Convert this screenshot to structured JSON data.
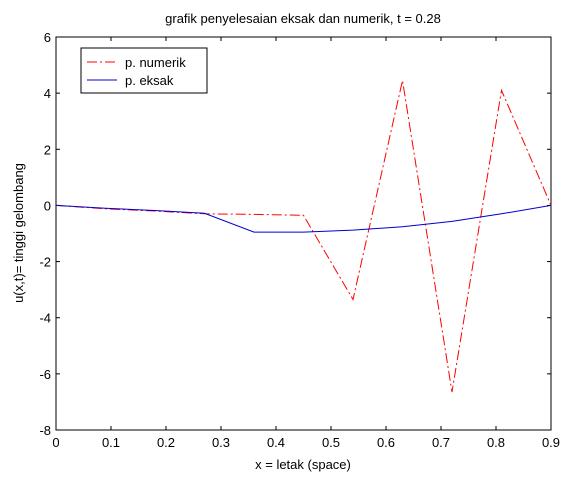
{
  "chart_data": {
    "type": "line",
    "title": "grafik penyelesaian eksak dan numerik, t = 0.28",
    "xlabel": "x = letak (space)",
    "ylabel": "u(x,t)= tinggi gelombang",
    "xlim": [
      0,
      0.9
    ],
    "ylim": [
      -8,
      6
    ],
    "xticks": [
      0,
      0.1,
      0.2,
      0.3,
      0.4,
      0.5,
      0.6,
      0.7,
      0.8,
      0.9
    ],
    "xtick_labels": [
      "0",
      "0.1",
      "0.2",
      "0.3",
      "0.4",
      "0.5",
      "0.6",
      "0.7",
      "0.8",
      "0.9"
    ],
    "yticks": [
      -8,
      -6,
      -4,
      -2,
      0,
      2,
      4,
      6
    ],
    "ytick_labels": [
      "-8",
      "-6",
      "-4",
      "-2",
      "0",
      "2",
      "4",
      "6"
    ],
    "grid": false,
    "legend_position": "top-left",
    "series": [
      {
        "name": "p. numerik",
        "color": "#ff0000",
        "style": "dashdot",
        "x": [
          0,
          0.09,
          0.18,
          0.27,
          0.36,
          0.45,
          0.54,
          0.63,
          0.72,
          0.81,
          0.9
        ],
        "y": [
          0,
          -0.12,
          -0.2,
          -0.3,
          -0.32,
          -0.35,
          -3.35,
          4.45,
          -6.65,
          4.1,
          0
        ]
      },
      {
        "name": "p. eksak",
        "color": "#0000cc",
        "style": "solid",
        "x": [
          0,
          0.09,
          0.18,
          0.27,
          0.36,
          0.45,
          0.54,
          0.63,
          0.72,
          0.81,
          0.9
        ],
        "y": [
          0,
          -0.1,
          -0.18,
          -0.28,
          -0.95,
          -0.95,
          -0.88,
          -0.76,
          -0.57,
          -0.3,
          0
        ]
      }
    ]
  }
}
